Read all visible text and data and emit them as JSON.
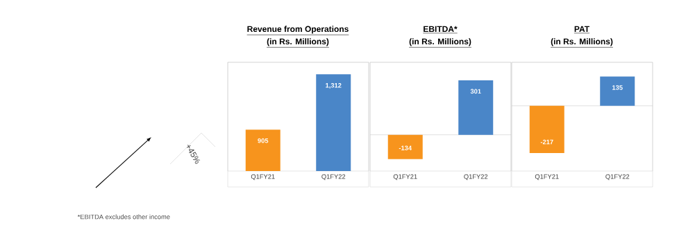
{
  "chart_data": [
    {
      "type": "bar",
      "title": "Revenue from Operations",
      "subtitle": "(in Rs. Millions)",
      "categories": [
        "Q1FY21",
        "Q1FY22"
      ],
      "values": [
        905,
        1312
      ],
      "colors": [
        "#f7941d",
        "#4a86c8"
      ],
      "value_labels": [
        "905",
        "1,312"
      ],
      "ylim": [
        600,
        1400
      ],
      "annotations": [
        "+45%"
      ]
    },
    {
      "type": "bar",
      "title": "EBITDA*",
      "subtitle": "(in Rs. Millions)",
      "categories": [
        "Q1FY21",
        "Q1FY22"
      ],
      "values": [
        -134,
        301
      ],
      "colors": [
        "#f7941d",
        "#4a86c8"
      ],
      "value_labels": [
        "-134",
        "301"
      ],
      "ylim": [
        -200,
        400
      ],
      "annotations": [
        "*EBITDA excludes other income"
      ]
    },
    {
      "type": "bar",
      "title": "PAT",
      "subtitle": "(in Rs. Millions)",
      "categories": [
        "Q1FY21",
        "Q1FY22"
      ],
      "values": [
        -217,
        135
      ],
      "colors": [
        "#f7941d",
        "#4a86c8"
      ],
      "value_labels": [
        "-217",
        "135"
      ],
      "ylim": [
        -300,
        200
      ]
    }
  ]
}
